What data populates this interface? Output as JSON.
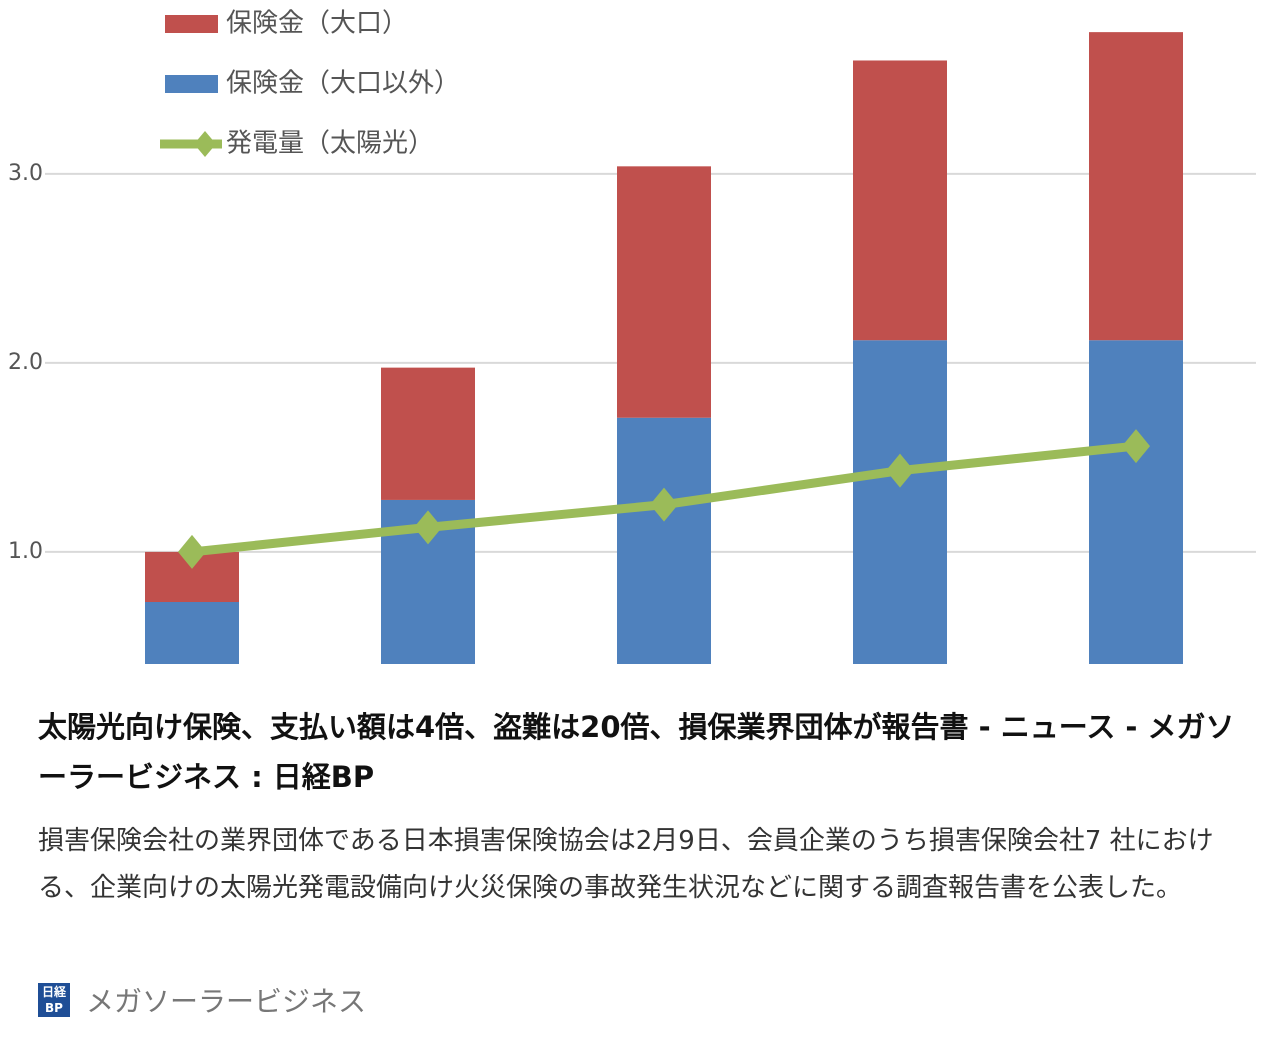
{
  "chart_data": {
    "type": "bar",
    "stacked": true,
    "categories": [
      null,
      null,
      null,
      null,
      null
    ],
    "series": [
      {
        "name": "保険金（大口以外）",
        "color": "#4f81bd",
        "values": [
          0.735,
          1.275,
          1.71,
          2.12,
          2.12
        ]
      },
      {
        "name": "保険金（大口）",
        "color": "#c0504d",
        "values": [
          0.265,
          0.7,
          1.33,
          1.48,
          1.63
        ]
      },
      {
        "name": "発電量（太陽光）",
        "color": "#9bbb59",
        "type": "line",
        "values": [
          1.0,
          1.13,
          1.25,
          1.43,
          1.56
        ]
      }
    ],
    "legend_order": [
      1,
      0,
      2
    ],
    "ylim": [
      0.407,
      3.92
    ],
    "yticks": [
      {
        "value": 1,
        "label": "1.0"
      },
      {
        "value": 2,
        "label": "2.0"
      },
      {
        "value": 3,
        "label": "3.0"
      }
    ],
    "grid": true
  },
  "article": {
    "title": "太陽光向け保険、支払い額は4倍、盗難は20倍、損保業界団体が報告書 - ニュース - メガソーラービジネス : 日経BP",
    "description": "損害保険会社の業界団体である日本損害保険協会は2月9日、会員企業のうち損害保険会社7 社における、企業向けの太陽光発電設備向け火災保険の事故発生状況などに関する調査報告書を公表した。",
    "source": {
      "logo_top": "日経",
      "logo_bottom": "BP",
      "name": "メガソーラービジネス"
    }
  }
}
